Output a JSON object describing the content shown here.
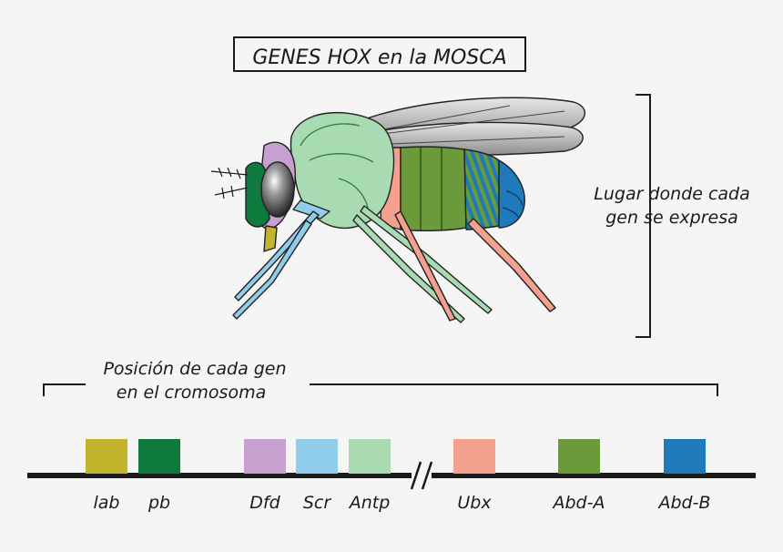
{
  "title": "GENES HOX en la MOSCA",
  "expression_label": [
    "Lugar donde cada",
    "gen se expresa"
  ],
  "position_label": [
    "Posición de cada gen",
    "en el cromosoma"
  ],
  "colors": {
    "lab": "#c3b42d",
    "pb": "#0e7a3e",
    "Dfd": "#c7a0d0",
    "Scr": "#90cdea",
    "Antp": "#a8dbb2",
    "Ubx": "#f4a08e",
    "AbdA": "#6a9a3a",
    "AbdB": "#1e7ab8"
  },
  "genes": [
    {
      "name": "lab",
      "color": "#c3b42d"
    },
    {
      "name": "pb",
      "color": "#0e7a3e"
    },
    {
      "name": "Dfd",
      "color": "#c7a0d0"
    },
    {
      "name": "Scr",
      "color": "#90cdea"
    },
    {
      "name": "Antp",
      "color": "#a8dbb2"
    },
    {
      "name": "Ubx",
      "color": "#f4a08e"
    },
    {
      "name": "Abd-A",
      "color": "#6a9a3a"
    },
    {
      "name": "Abd-B",
      "color": "#1e7ab8"
    }
  ]
}
